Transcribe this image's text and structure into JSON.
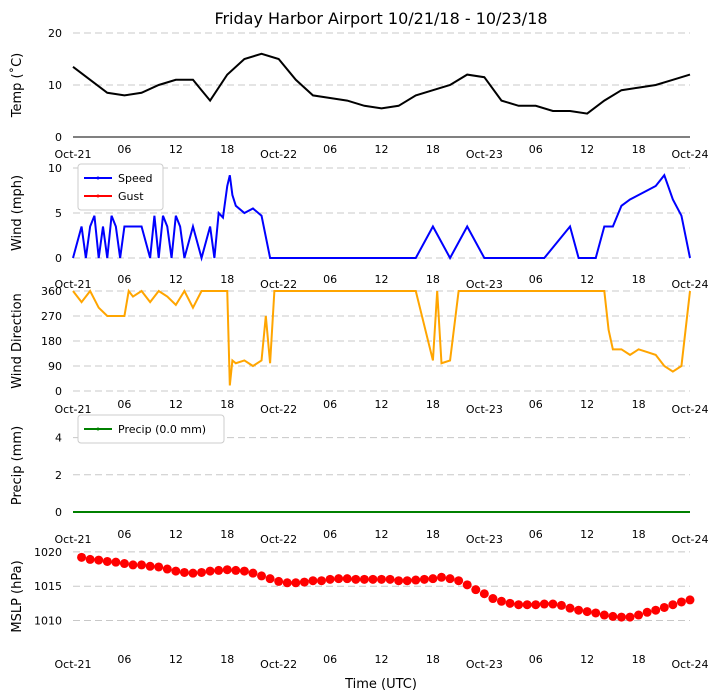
{
  "title": "Friday Harbor Airport 10/21/18 - 10/23/18",
  "xlabel": "Time (UTC)",
  "x_ticks": [
    "Oct-21",
    "06",
    "12",
    "18",
    "Oct-22",
    "06",
    "12",
    "18",
    "Oct-23",
    "06",
    "12",
    "18",
    "Oct-24"
  ],
  "x_range_hours": [
    0,
    72
  ],
  "chart_data": [
    {
      "type": "line",
      "name": "temperature",
      "ylabel": "Temp ($^\\circ$C)",
      "ylabel_display": "Temp (˚C)",
      "ylim": [
        0,
        20
      ],
      "yticks": [
        0,
        10,
        20
      ],
      "x": [
        0,
        2,
        4,
        6,
        8,
        10,
        12,
        14,
        15,
        16,
        18,
        20,
        22,
        24,
        26,
        28,
        30,
        32,
        34,
        36,
        38,
        40,
        42,
        44,
        46,
        48,
        50,
        52,
        54,
        56,
        58,
        60,
        62,
        64,
        66,
        68,
        70,
        72
      ],
      "values": [
        13.5,
        11,
        8.5,
        8,
        8.5,
        10,
        11,
        11,
        9,
        7,
        12,
        15,
        16,
        15,
        11,
        8,
        7.5,
        7,
        6,
        5.5,
        6,
        8,
        9,
        10,
        12,
        11.5,
        7,
        6,
        6,
        5,
        5,
        4.5,
        7,
        9,
        9.5,
        10,
        11,
        12
      ]
    },
    {
      "type": "line",
      "name": "wind",
      "ylabel": "Wind (mph)",
      "ylim": [
        0,
        10
      ],
      "yticks": [
        0,
        5,
        10
      ],
      "legend": [
        "Speed",
        "Gust"
      ],
      "series": [
        {
          "name": "Speed",
          "color": "#0000ff",
          "x": [
            0,
            1,
            1.5,
            2,
            2.5,
            3,
            3.5,
            4,
            4.5,
            5,
            5.5,
            6,
            7,
            8,
            9,
            9.5,
            10,
            10.5,
            11,
            11.5,
            12,
            12.5,
            13,
            14,
            15,
            16,
            16.5,
            17,
            17.5,
            18,
            18.3,
            18.6,
            19,
            20,
            21,
            22,
            23,
            24,
            26,
            30,
            35,
            40,
            42,
            44,
            46,
            48,
            52,
            55,
            58,
            59,
            60,
            61,
            62,
            63,
            64,
            65,
            66,
            67,
            68,
            69,
            70,
            71,
            72
          ],
          "values": [
            0,
            3.5,
            0,
            3.5,
            4.7,
            0,
            3.5,
            0,
            4.7,
            3.5,
            0,
            3.5,
            3.5,
            3.5,
            0,
            4.7,
            0,
            4.7,
            3.5,
            0,
            4.7,
            3.5,
            0,
            3.5,
            0,
            3.5,
            0,
            5,
            4.5,
            8,
            9.2,
            7,
            5.8,
            5,
            5.5,
            4.7,
            0,
            0,
            0,
            0,
            0,
            0,
            3.5,
            0,
            3.5,
            0,
            0,
            0,
            3.5,
            0,
            0,
            0,
            3.5,
            3.5,
            5.8,
            6.5,
            7,
            7.5,
            8,
            9.2,
            6.5,
            4.7,
            0
          ]
        },
        {
          "name": "Gust",
          "color": "#ff0000",
          "x": [],
          "values": []
        }
      ]
    },
    {
      "type": "line",
      "name": "wind_direction",
      "ylabel": "Wind Direction",
      "ylim": [
        0,
        360
      ],
      "yticks": [
        0,
        90,
        180,
        270,
        360
      ],
      "color": "#ffa500",
      "x": [
        0,
        1,
        2,
        3,
        4,
        5,
        6,
        6.5,
        7,
        8,
        9,
        10,
        11,
        12,
        13,
        14,
        15,
        16,
        17,
        18,
        18.3,
        18.6,
        19,
        20,
        21,
        22,
        22.5,
        23,
        23.5,
        24,
        28,
        32,
        36,
        40,
        42,
        42.5,
        43,
        44,
        45,
        46,
        48,
        52,
        55,
        58,
        60,
        62,
        62.5,
        63,
        64,
        65,
        66,
        67,
        68,
        69,
        70,
        71,
        72
      ],
      "values": [
        360,
        320,
        360,
        300,
        270,
        270,
        270,
        360,
        340,
        360,
        320,
        360,
        340,
        310,
        360,
        300,
        360,
        360,
        360,
        360,
        20,
        110,
        100,
        110,
        90,
        110,
        270,
        100,
        360,
        360,
        360,
        360,
        360,
        360,
        110,
        360,
        100,
        110,
        360,
        360,
        360,
        360,
        360,
        360,
        360,
        360,
        220,
        150,
        150,
        130,
        150,
        140,
        130,
        90,
        70,
        90,
        360
      ]
    },
    {
      "type": "line",
      "name": "precipitation",
      "ylabel": "Precip (mm)",
      "ylim": [
        0,
        5
      ],
      "yticks": [
        0,
        2,
        4
      ],
      "color": "#008000",
      "legend": [
        "Precip (0.0 mm)"
      ],
      "x": [
        0,
        72
      ],
      "values": [
        0,
        0
      ]
    },
    {
      "type": "line",
      "name": "mslp",
      "ylabel": "MSLP (hPa)",
      "ylim": [
        1006,
        1021
      ],
      "yticks": [
        1010,
        1015,
        1020
      ],
      "color": "#ff0000",
      "x": [
        1,
        2,
        3,
        4,
        5,
        6,
        7,
        8,
        9,
        10,
        11,
        12,
        13,
        14,
        15,
        16,
        17,
        18,
        19,
        20,
        21,
        22,
        23,
        24,
        25,
        26,
        27,
        28,
        29,
        30,
        31,
        32,
        33,
        34,
        35,
        36,
        37,
        38,
        39,
        40,
        41,
        42,
        43,
        44,
        45,
        46,
        47,
        48,
        49,
        50,
        51,
        52,
        53,
        54,
        55,
        56,
        57,
        58,
        59,
        60,
        61,
        62,
        63,
        64,
        65,
        66,
        67,
        68,
        69,
        70,
        71,
        72
      ],
      "values": [
        1019.2,
        1018.9,
        1018.8,
        1018.6,
        1018.5,
        1018.3,
        1018.1,
        1018.1,
        1017.9,
        1017.8,
        1017.5,
        1017.2,
        1017.0,
        1016.9,
        1017.0,
        1017.2,
        1017.3,
        1017.4,
        1017.3,
        1017.2,
        1016.9,
        1016.5,
        1016.1,
        1015.7,
        1015.5,
        1015.5,
        1015.6,
        1015.8,
        1015.8,
        1016.0,
        1016.1,
        1016.1,
        1016.0,
        1016.0,
        1016.0,
        1016.0,
        1016.0,
        1015.8,
        1015.8,
        1015.9,
        1016.0,
        1016.1,
        1016.3,
        1016.1,
        1015.8,
        1015.2,
        1014.5,
        1013.9,
        1013.2,
        1012.8,
        1012.5,
        1012.3,
        1012.3,
        1012.3,
        1012.4,
        1012.4,
        1012.2,
        1011.8,
        1011.5,
        1011.3,
        1011.1,
        1010.8,
        1010.6,
        1010.5,
        1010.5,
        1010.8,
        1011.2,
        1011.5,
        1011.9,
        1012.3,
        1012.7,
        1013.0
      ]
    }
  ]
}
